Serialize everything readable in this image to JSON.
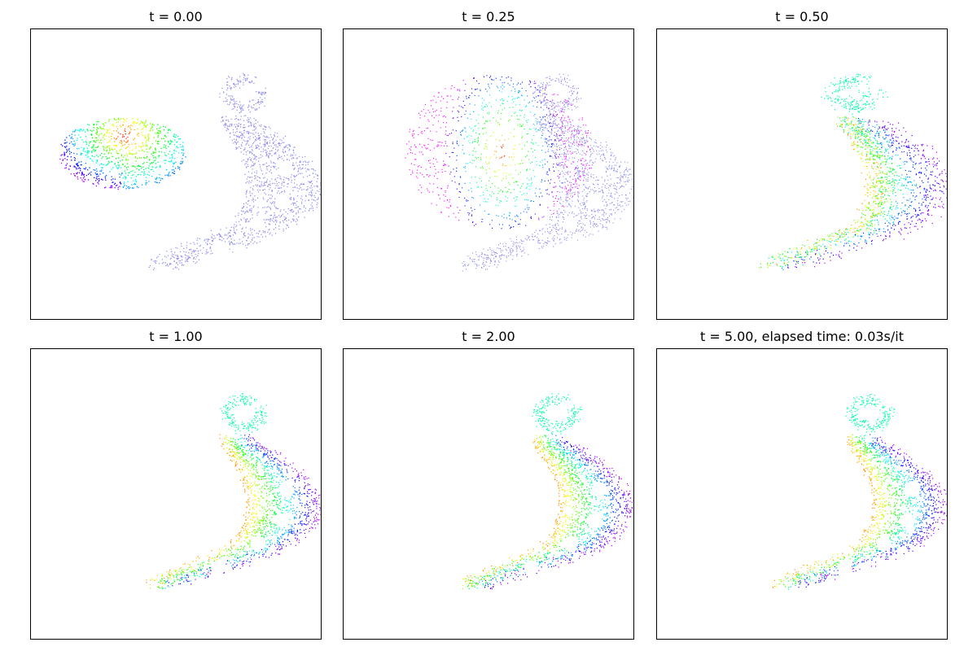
{
  "figure": {
    "panels": [
      {
        "title": "t = 0.00"
      },
      {
        "title": "t = 0.25"
      },
      {
        "title": "t = 0.50"
      },
      {
        "title": "t = 1.00"
      },
      {
        "title": "t = 2.00"
      },
      {
        "title": "t = 5.00, elapsed time: 0.03s/it"
      }
    ]
  },
  "chart_data": {
    "type": "scatter",
    "grid": false,
    "axes_ticks": false,
    "description_colors": {
      "target": "#8c8cf0",
      "colormap": "rainbow/hsv"
    },
    "panels": [
      {
        "t": 0.0,
        "title": "t = 0.00"
      },
      {
        "t": 0.25,
        "title": "t = 0.25"
      },
      {
        "t": 0.5,
        "title": "t = 0.50"
      },
      {
        "t": 1.0,
        "title": "t = 1.00"
      },
      {
        "t": 2.0,
        "title": "t = 2.00"
      },
      {
        "t": 5.0,
        "title": "t = 5.00, elapsed time: 0.03s/it"
      }
    ],
    "series": [
      {
        "role": "source",
        "shape": "ellipse with hue gradient"
      },
      {
        "role": "target",
        "shape": "curved comet with spiral head and holes",
        "color": "#8c8cf0"
      }
    ]
  }
}
